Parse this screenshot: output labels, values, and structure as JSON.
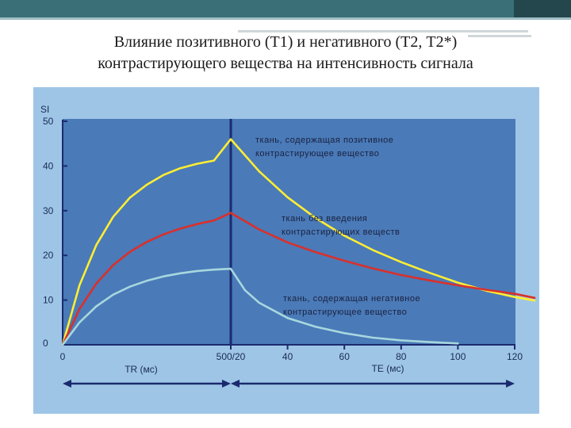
{
  "slide": {
    "title_line1": "Влияние позитивного (Т1) и негативного (Т2, Т2*)",
    "title_line2": "контрастирующего вещества на интенсивность сигнала"
  },
  "colors": {
    "panel_bg": "#9ec5e6",
    "plot_bg": "#4a7ab8",
    "axis": "#1b2a6e",
    "positive": "#ffee33",
    "native": "#d9302c",
    "negative": "#a7d7de"
  },
  "chart_data": {
    "type": "line",
    "ylabel_top": "SI",
    "ylim": [
      0,
      50
    ],
    "y_ticks": [
      "0",
      "10",
      "20",
      "30",
      "40",
      "50"
    ],
    "x_ticks_tr": [
      "0",
      "500/20"
    ],
    "x_ticks_te": [
      "40",
      "60",
      "80",
      "100",
      "120"
    ],
    "tr_label": "TR (мс)",
    "te_label": "TE (мс)",
    "grid": false,
    "series": [
      {
        "name": "ткань, содержащая позитивное контрастирующее вещество",
        "label_lines": [
          "ткань, содержащая позитивное",
          "контрастирующее вещество"
        ],
        "color_key": "positive",
        "tr": [
          [
            0,
            0
          ],
          [
            50,
            13.3
          ],
          [
            100,
            22.3
          ],
          [
            150,
            28.6
          ],
          [
            200,
            32.9
          ],
          [
            250,
            35.8
          ],
          [
            300,
            38.0
          ],
          [
            350,
            39.5
          ],
          [
            400,
            40.5
          ],
          [
            450,
            41.2
          ],
          [
            500,
            46
          ]
        ],
        "te": [
          [
            20,
            46
          ],
          [
            30,
            38.8
          ],
          [
            40,
            33.0
          ],
          [
            50,
            28.3
          ],
          [
            60,
            24.4
          ],
          [
            70,
            21.2
          ],
          [
            80,
            18.5
          ],
          [
            90,
            16.1
          ],
          [
            100,
            13.9
          ],
          [
            110,
            12.1
          ],
          [
            120,
            10.7
          ],
          [
            127,
            9.9
          ]
        ]
      },
      {
        "name": "ткань без введения контрастирующих веществ",
        "label_lines": [
          "ткань без введения",
          "контрастирующих веществ"
        ],
        "color_key": "native",
        "tr": [
          [
            0,
            0
          ],
          [
            50,
            8.0
          ],
          [
            100,
            13.7
          ],
          [
            150,
            17.8
          ],
          [
            200,
            20.8
          ],
          [
            250,
            23.0
          ],
          [
            300,
            24.7
          ],
          [
            350,
            26.0
          ],
          [
            400,
            27.0
          ],
          [
            450,
            27.8
          ],
          [
            500,
            29.5
          ]
        ],
        "te": [
          [
            20,
            29.5
          ],
          [
            30,
            25.8
          ],
          [
            40,
            22.9
          ],
          [
            50,
            20.7
          ],
          [
            60,
            18.8
          ],
          [
            70,
            17.1
          ],
          [
            80,
            15.6
          ],
          [
            90,
            14.4
          ],
          [
            100,
            13.3
          ],
          [
            110,
            12.3
          ],
          [
            120,
            11.4
          ],
          [
            127,
            10.5
          ]
        ]
      },
      {
        "name": "ткань, содержащая негативное контрастирующее вещество",
        "label_lines": [
          "ткань, содержащая негативное",
          "контрастирующее вещество"
        ],
        "color_key": "negative",
        "tr": [
          [
            0,
            0
          ],
          [
            50,
            5.0
          ],
          [
            100,
            8.6
          ],
          [
            150,
            11.2
          ],
          [
            200,
            13.0
          ],
          [
            250,
            14.3
          ],
          [
            300,
            15.3
          ],
          [
            350,
            16.0
          ],
          [
            400,
            16.5
          ],
          [
            450,
            16.8
          ],
          [
            500,
            17
          ]
        ],
        "te": [
          [
            20,
            17
          ],
          [
            25,
            12.2
          ],
          [
            30,
            9.4
          ],
          [
            40,
            6.0
          ],
          [
            50,
            4.0
          ],
          [
            60,
            2.6
          ],
          [
            70,
            1.6
          ],
          [
            80,
            1.0
          ],
          [
            90,
            0.6
          ],
          [
            100,
            0.3
          ]
        ]
      }
    ]
  }
}
